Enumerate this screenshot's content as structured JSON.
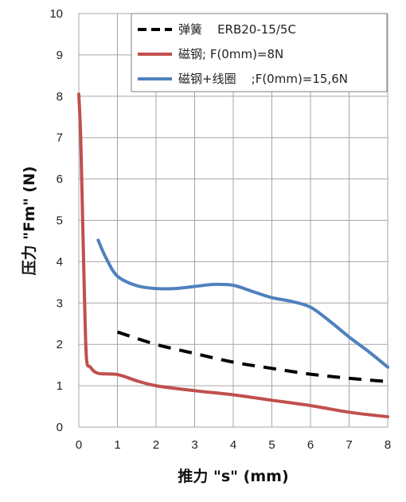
{
  "chart_data": {
    "type": "line",
    "xlabel": "推力 \"s\" (mm)",
    "ylabel": "压力 \"Fm\" (N)",
    "xlim": [
      0,
      8
    ],
    "ylim": [
      0,
      10
    ],
    "xticks": [
      "0",
      "1",
      "2",
      "3",
      "4",
      "5",
      "6",
      "7",
      "8"
    ],
    "yticks": [
      "0",
      "1",
      "2",
      "3",
      "4",
      "5",
      "6",
      "7",
      "8",
      "9",
      "10"
    ],
    "grid": true,
    "legend_position": "top-right",
    "series": [
      {
        "name": "弹簧    ERB20-15/5C",
        "color": "#000000",
        "style": "dashed",
        "points": [
          [
            1,
            2.3
          ],
          [
            2,
            2.0
          ],
          [
            3,
            1.78
          ],
          [
            4,
            1.57
          ],
          [
            5,
            1.42
          ],
          [
            6,
            1.28
          ],
          [
            7,
            1.18
          ],
          [
            8,
            1.1
          ]
        ]
      },
      {
        "name": "磁钢; F(0mm)=8N",
        "color": "#c0504d",
        "style": "solid",
        "points": [
          [
            0,
            8.05
          ],
          [
            0.05,
            7.0
          ],
          [
            0.1,
            5.0
          ],
          [
            0.15,
            3.0
          ],
          [
            0.2,
            1.65
          ],
          [
            0.3,
            1.45
          ],
          [
            0.5,
            1.3
          ],
          [
            1.0,
            1.27
          ],
          [
            1.5,
            1.12
          ],
          [
            2.0,
            1.0
          ],
          [
            3.0,
            0.88
          ],
          [
            4.0,
            0.78
          ],
          [
            5.0,
            0.65
          ],
          [
            6.0,
            0.52
          ],
          [
            7.0,
            0.36
          ],
          [
            8.0,
            0.25
          ]
        ]
      },
      {
        "name": "磁钢+线圈    ;F(0mm)=15,6N",
        "color": "#4f81bd",
        "style": "solid",
        "points": [
          [
            0.5,
            4.52
          ],
          [
            0.7,
            4.1
          ],
          [
            1.0,
            3.65
          ],
          [
            1.5,
            3.42
          ],
          [
            2.0,
            3.35
          ],
          [
            2.5,
            3.35
          ],
          [
            3.0,
            3.4
          ],
          [
            3.5,
            3.45
          ],
          [
            4.0,
            3.43
          ],
          [
            4.5,
            3.28
          ],
          [
            5.0,
            3.13
          ],
          [
            5.5,
            3.04
          ],
          [
            6.0,
            2.9
          ],
          [
            6.5,
            2.56
          ],
          [
            7.0,
            2.18
          ],
          [
            7.5,
            1.83
          ],
          [
            8.0,
            1.45
          ]
        ]
      }
    ]
  }
}
